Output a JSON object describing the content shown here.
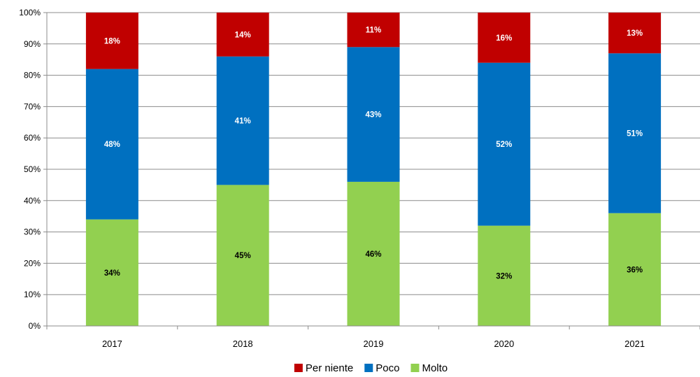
{
  "chart_data": {
    "type": "bar",
    "stacked": true,
    "normalized": true,
    "categories": [
      "2017",
      "2018",
      "2019",
      "2020",
      "2021"
    ],
    "series": [
      {
        "name": "Molto",
        "color": "#92D050",
        "label_color": "#000000",
        "values": [
          34,
          45,
          46,
          32,
          36
        ]
      },
      {
        "name": "Poco",
        "color": "#0070C0",
        "label_color": "#ffffff",
        "values": [
          48,
          41,
          43,
          52,
          51
        ]
      },
      {
        "name": "Per niente",
        "color": "#C00000",
        "label_color": "#ffffff",
        "values": [
          18,
          14,
          11,
          16,
          13
        ]
      }
    ],
    "y_ticks": [
      "0%",
      "10%",
      "20%",
      "30%",
      "40%",
      "50%",
      "60%",
      "70%",
      "80%",
      "90%",
      "100%"
    ],
    "ylim": [
      0,
      100
    ],
    "grid": true,
    "legend": {
      "position": "bottom",
      "order": [
        "Per niente",
        "Poco",
        "Molto"
      ]
    },
    "title": "",
    "xlabel": "",
    "ylabel": ""
  }
}
